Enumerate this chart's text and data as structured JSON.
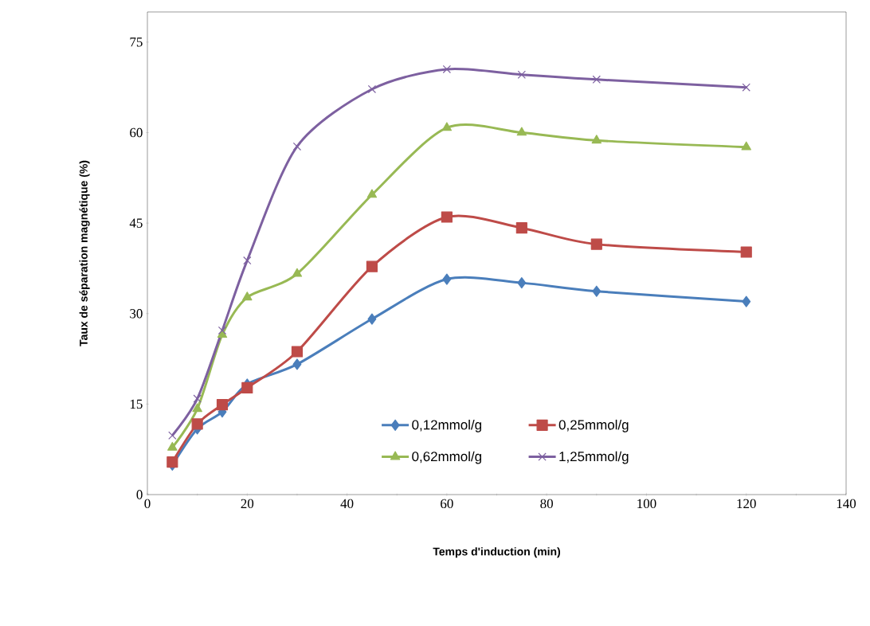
{
  "chart_data": {
    "type": "line",
    "xlabel": "Temps d'induction (min)",
    "ylabel": "Taux de séparation magnétique (%)",
    "xlim": [
      0,
      140
    ],
    "xticks": [
      0,
      20,
      40,
      60,
      80,
      100,
      120,
      140
    ],
    "ylim": [
      0,
      80
    ],
    "yticks": [
      0,
      15,
      30,
      45,
      60,
      75
    ],
    "grid": false,
    "legend": "bottom right",
    "x": [
      5,
      10,
      15,
      20,
      30,
      45,
      60,
      75,
      90,
      120
    ],
    "series": [
      {
        "name": "0,12mmol/g",
        "color": "#4a7ebb",
        "marker": "diamond",
        "values": [
          4.9,
          10.9,
          13.7,
          18.3,
          21.6,
          29.1,
          35.7,
          35.1,
          33.7,
          32.0
        ]
      },
      {
        "name": "0,25mmol/g",
        "color": "#be4b48",
        "marker": "square",
        "values": [
          5.4,
          11.7,
          14.9,
          17.7,
          23.7,
          37.8,
          46.0,
          44.2,
          41.5,
          40.2
        ]
      },
      {
        "name": "0,62mmol/g",
        "color": "#98b954",
        "marker": "triangle",
        "values": [
          7.8,
          14.2,
          26.5,
          32.7,
          36.6,
          49.7,
          60.8,
          60.0,
          58.7,
          57.6
        ]
      },
      {
        "name": "1,25mmol/g",
        "color": "#7d60a0",
        "marker": "cross",
        "values": [
          9.8,
          15.9,
          27.2,
          38.8,
          57.7,
          67.2,
          70.5,
          69.6,
          68.8,
          67.5
        ]
      }
    ]
  }
}
